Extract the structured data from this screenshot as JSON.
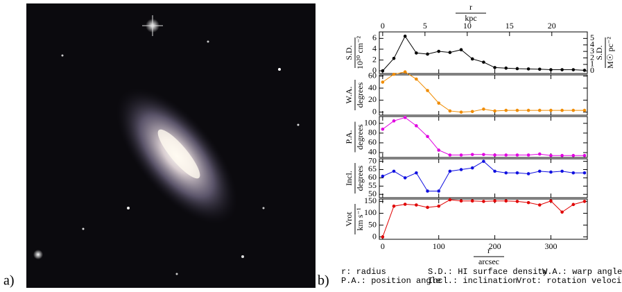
{
  "labels": {
    "a": "a)",
    "b": "b)"
  },
  "caption": [
    [
      "r: radius",
      "S.D.: HI surface density",
      "W.A.: warp angle"
    ],
    [
      "P.A.: position angle",
      "Incl.: inclination",
      "Vrot: rotation velocity"
    ]
  ],
  "chart_data": [
    {
      "type": "line",
      "ylabel": [
        "S.D.",
        "10²⁰ cm⁻²"
      ],
      "color": "#000000",
      "x": [
        0,
        20,
        40,
        60,
        80,
        100,
        120,
        140,
        160,
        180,
        200,
        220,
        240,
        260,
        280,
        300,
        320,
        340,
        360
      ],
      "values": [
        0,
        2.3,
        6.4,
        3.3,
        3.1,
        3.6,
        3.4,
        3.9,
        2.2,
        1.6,
        0.6,
        0.5,
        0.4,
        0.35,
        0.3,
        0.2,
        0.2,
        0.2,
        0.1
      ],
      "xlim": [
        -6,
        365
      ],
      "ylim": [
        -0.5,
        7.2
      ],
      "yticks": [
        0,
        2,
        4,
        6
      ],
      "xticks": [
        0,
        100,
        200,
        300
      ],
      "y2label": [
        "S.D.",
        "M☉ pc⁻²"
      ],
      "y2lim": [
        -0.4,
        6.0
      ],
      "y2ticks": [
        0,
        1,
        2,
        3,
        4,
        5
      ],
      "x2label": [
        "r",
        "kpc"
      ],
      "x2lim": [
        -0.4,
        24.2
      ],
      "x2ticks": [
        0,
        5,
        10,
        15,
        20
      ]
    },
    {
      "type": "line",
      "ylabel": [
        "W.A.",
        "degrees"
      ],
      "color": "#f08c00",
      "x": [
        0,
        20,
        40,
        60,
        80,
        100,
        120,
        140,
        160,
        180,
        200,
        220,
        240,
        260,
        280,
        300,
        320,
        340,
        360
      ],
      "values": [
        50,
        63,
        67,
        55,
        36,
        15,
        2,
        0,
        1,
        5,
        2,
        3,
        3,
        3,
        3,
        3,
        3,
        3,
        3
      ],
      "xlim": [
        -6,
        365
      ],
      "ylim": [
        -5,
        62
      ],
      "yticks": [
        0,
        20,
        40,
        60
      ],
      "xticks": [
        0,
        100,
        200,
        300
      ]
    },
    {
      "type": "line",
      "ylabel": [
        "P.A.",
        "degrees"
      ],
      "color": "#e000e0",
      "x": [
        0,
        20,
        40,
        60,
        80,
        100,
        120,
        140,
        160,
        180,
        200,
        220,
        240,
        260,
        280,
        300,
        320,
        340,
        360
      ],
      "values": [
        88,
        105,
        112,
        95,
        73,
        45,
        35,
        35,
        36,
        36,
        35,
        35,
        35,
        35,
        37,
        34,
        34,
        34,
        34
      ],
      "xlim": [
        -6,
        365
      ],
      "ylim": [
        30,
        114
      ],
      "yticks": [
        40,
        60,
        80,
        100
      ],
      "xticks": [
        0,
        100,
        200,
        300
      ]
    },
    {
      "type": "line",
      "ylabel": [
        "Incl.",
        "degrees"
      ],
      "color": "#1010e0",
      "x": [
        0,
        20,
        40,
        60,
        80,
        100,
        120,
        140,
        160,
        180,
        200,
        220,
        240,
        260,
        280,
        300,
        320,
        340,
        360
      ],
      "values": [
        61,
        64,
        60,
        63,
        52,
        52,
        64,
        65,
        66,
        70,
        64,
        63,
        63,
        62.5,
        64,
        63.5,
        64,
        63,
        63
      ],
      "xlim": [
        -6,
        365
      ],
      "ylim": [
        48,
        71.5
      ],
      "yticks": [
        50,
        55,
        60,
        65,
        70
      ],
      "xticks": [
        0,
        100,
        200,
        300
      ]
    },
    {
      "type": "line",
      "ylabel": [
        "Vrot",
        "km s⁻¹"
      ],
      "color": "#e00000",
      "x": [
        0,
        20,
        40,
        60,
        80,
        100,
        120,
        140,
        160,
        180,
        200,
        220,
        240,
        260,
        280,
        300,
        320,
        340,
        360
      ],
      "values": [
        0,
        130,
        138,
        135,
        125,
        130,
        157,
        152,
        152,
        150,
        152,
        152,
        150,
        145,
        135,
        152,
        105,
        137,
        150
      ],
      "xlim": [
        -6,
        365
      ],
      "ylim": [
        -10,
        160
      ],
      "yticks": [
        0,
        50,
        100,
        150
      ],
      "xticks": [
        0,
        100,
        200,
        300
      ],
      "xlabel": [
        "r",
        "arcsec"
      ]
    }
  ]
}
